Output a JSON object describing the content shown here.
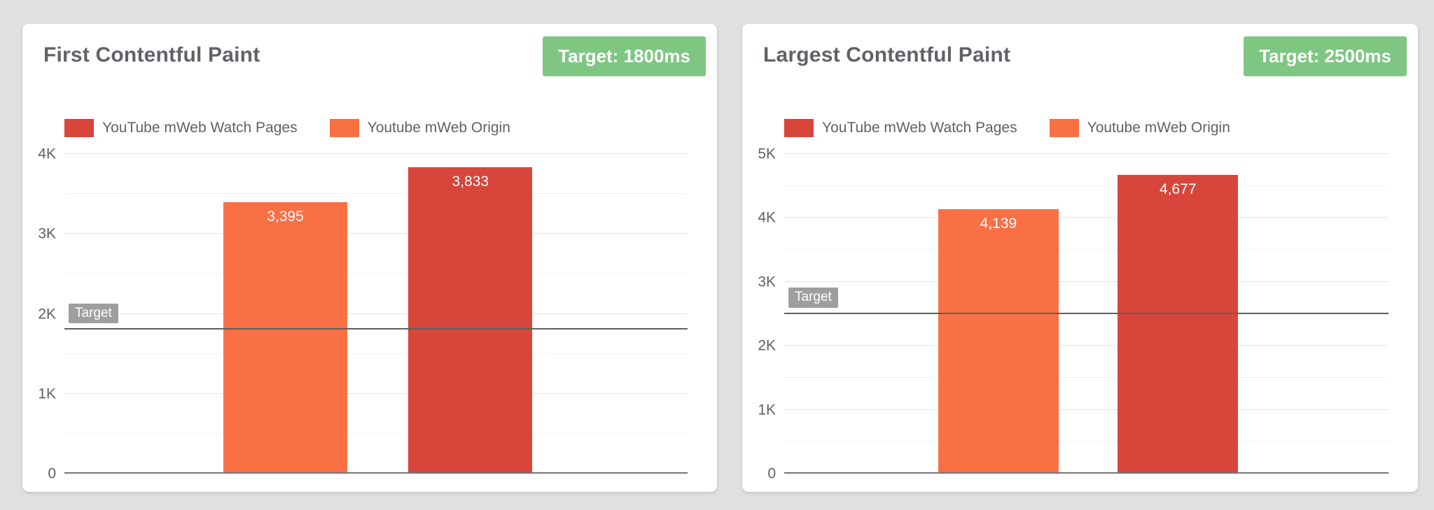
{
  "page": {
    "background": "#e0e0e0"
  },
  "colors": {
    "red": "#d8453a",
    "orange": "#f97044",
    "green_badge": "#7ec682",
    "grid_major": "#e4e4e4",
    "grid_minor": "#f1f1f1",
    "baseline": "#757575",
    "target_line": "#5f5f5f",
    "target_chip_bg": "#9e9e9e",
    "title_text": "#5f6368",
    "axis_text": "#616161"
  },
  "chart_data": [
    {
      "type": "bar",
      "title": "First Contentful Paint",
      "target_badge": "Target: 1800ms",
      "target_value": 1800,
      "target_line_label": "Target",
      "ylim": [
        0,
        4000
      ],
      "y_ticks": [
        "0",
        "1K",
        "2K",
        "3K",
        "4K"
      ],
      "major_step": 1000,
      "minor_step": 500,
      "grid": true,
      "legend_position": "top",
      "legend": [
        {
          "name": "YouTube mWeb Watch Pages",
          "color_key": "red"
        },
        {
          "name": "Youtube mWeb Origin",
          "color_key": "orange"
        }
      ],
      "series": [
        {
          "name": "Youtube mWeb Origin",
          "value": 3395,
          "label": "3,395",
          "color_key": "orange"
        },
        {
          "name": "YouTube mWeb Watch Pages",
          "value": 3833,
          "label": "3,833",
          "color_key": "red"
        }
      ]
    },
    {
      "type": "bar",
      "title": "Largest Contentful Paint",
      "target_badge": "Target: 2500ms",
      "target_value": 2500,
      "target_line_label": "Target",
      "ylim": [
        0,
        5000
      ],
      "y_ticks": [
        "0",
        "1K",
        "2K",
        "3K",
        "4K",
        "5K"
      ],
      "major_step": 1000,
      "minor_step": 500,
      "grid": true,
      "legend_position": "top",
      "legend": [
        {
          "name": "YouTube mWeb Watch Pages",
          "color_key": "red"
        },
        {
          "name": "Youtube mWeb Origin",
          "color_key": "orange"
        }
      ],
      "series": [
        {
          "name": "Youtube mWeb Origin",
          "value": 4139,
          "label": "4,139",
          "color_key": "orange"
        },
        {
          "name": "YouTube mWeb Watch Pages",
          "value": 4677,
          "label": "4,677",
          "color_key": "red"
        }
      ]
    }
  ]
}
